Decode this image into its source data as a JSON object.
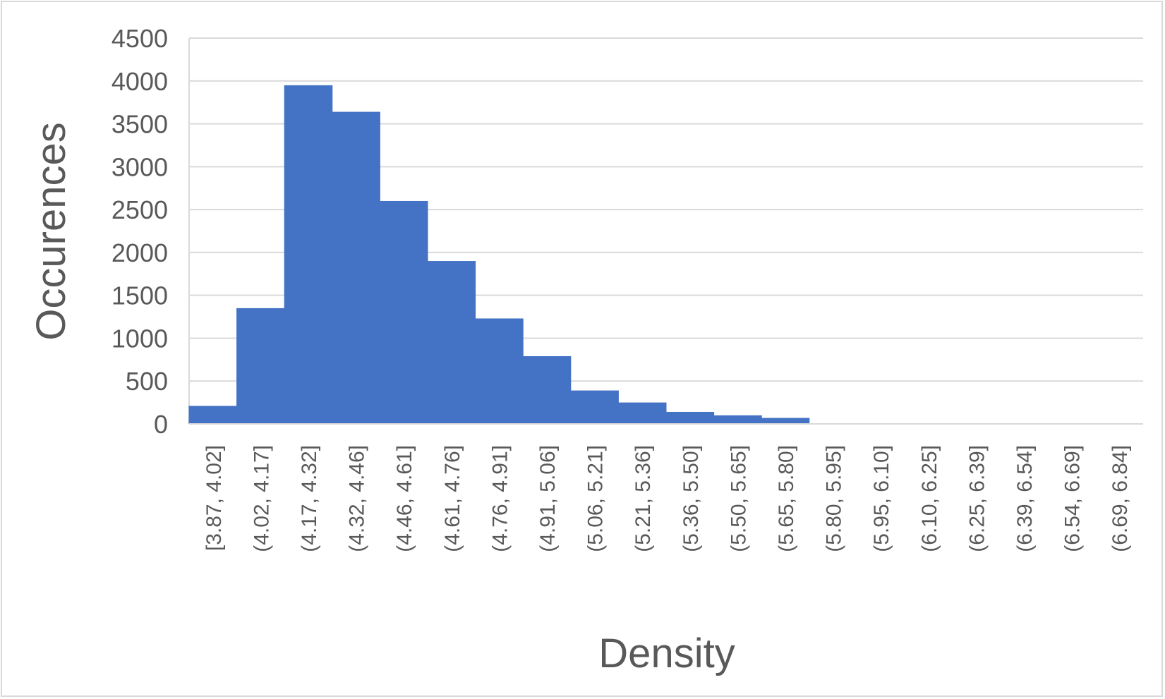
{
  "chart_data": {
    "type": "bar",
    "title": "",
    "xlabel": "Density",
    "ylabel": "Occurences",
    "ylim": [
      0,
      4500
    ],
    "yticks": [
      "0",
      "500",
      "1000",
      "1500",
      "2000",
      "2500",
      "3000",
      "3500",
      "4000",
      "4500"
    ],
    "grid": true,
    "legend": "none",
    "bar_color": "#4472c4",
    "categories": [
      "[3.87, 4.02]",
      "(4.02, 4.17]",
      "(4.17, 4.32]",
      "(4.32, 4.46]",
      "(4.46, 4.61]",
      "(4.61, 4.76]",
      "(4.76, 4.91]",
      "(4.91, 5.06]",
      "(5.06, 5.21]",
      "(5.21, 5.36]",
      "(5.36, 5.50]",
      "(5.50, 5.65]",
      "(5.65, 5.80]",
      "(5.80, 5.95]",
      "(5.95, 6.10]",
      "(6.10, 6.25]",
      "(6.25, 6.39]",
      "(6.39, 6.54]",
      "(6.54, 6.69]",
      "(6.69, 6.84]"
    ],
    "values": [
      210,
      1350,
      3950,
      3640,
      2600,
      1900,
      1230,
      790,
      390,
      250,
      140,
      100,
      70,
      0,
      0,
      0,
      0,
      0,
      0,
      0
    ]
  }
}
